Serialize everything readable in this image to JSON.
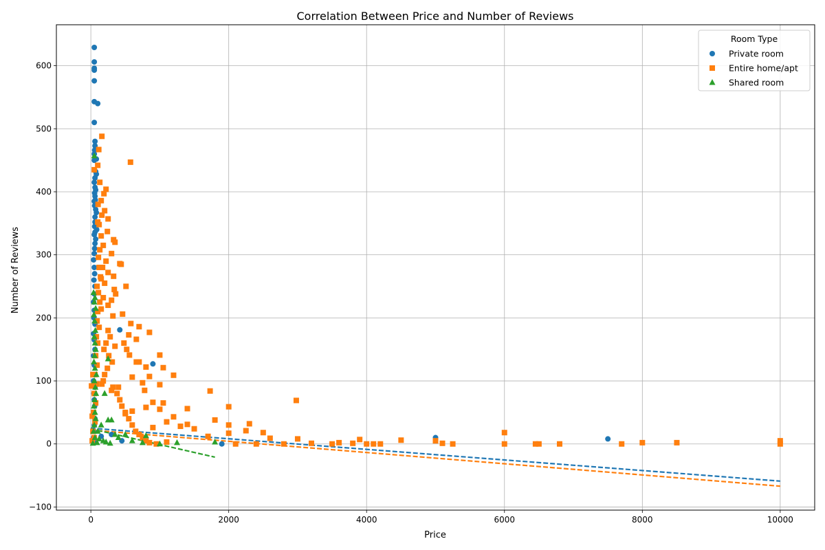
{
  "chart_data": {
    "type": "scatter",
    "title": "Correlation Between Price and Number of Reviews",
    "xlabel": "Price",
    "ylabel": "Number of Reviews",
    "xlim": [
      -500,
      10500
    ],
    "ylim": [
      -105,
      665
    ],
    "xticks": [
      0,
      2000,
      4000,
      6000,
      8000,
      10000
    ],
    "yticks": [
      -100,
      0,
      100,
      200,
      300,
      400,
      500,
      600
    ],
    "grid": true,
    "legend": {
      "title": "Room Type",
      "placement": "top-right"
    },
    "series": [
      {
        "name": "Private room",
        "color": "#1f77b4",
        "marker": "circle",
        "points": [
          [
            50,
            629
          ],
          [
            50,
            606
          ],
          [
            50,
            596
          ],
          [
            50,
            593
          ],
          [
            50,
            576
          ],
          [
            50,
            543
          ],
          [
            100,
            540
          ],
          [
            50,
            510
          ],
          [
            60,
            480
          ],
          [
            60,
            473
          ],
          [
            55,
            466
          ],
          [
            50,
            460
          ],
          [
            80,
            452
          ],
          [
            50,
            450
          ],
          [
            70,
            432
          ],
          [
            80,
            428
          ],
          [
            60,
            422
          ],
          [
            50,
            415
          ],
          [
            60,
            407
          ],
          [
            70,
            403
          ],
          [
            55,
            398
          ],
          [
            60,
            393
          ],
          [
            65,
            387
          ],
          [
            50,
            385
          ],
          [
            55,
            378
          ],
          [
            70,
            372
          ],
          [
            80,
            367
          ],
          [
            60,
            360
          ],
          [
            60,
            352
          ],
          [
            55,
            345
          ],
          [
            85,
            340
          ],
          [
            60,
            336
          ],
          [
            50,
            332
          ],
          [
            70,
            325
          ],
          [
            60,
            318
          ],
          [
            55,
            310
          ],
          [
            50,
            302
          ],
          [
            40,
            292
          ],
          [
            50,
            280
          ],
          [
            55,
            270
          ],
          [
            45,
            260
          ],
          [
            60,
            250
          ],
          [
            50,
            238
          ],
          [
            40,
            225
          ],
          [
            50,
            212
          ],
          [
            45,
            200
          ],
          [
            60,
            190
          ],
          [
            40,
            175
          ],
          [
            50,
            165
          ],
          [
            60,
            150
          ],
          [
            40,
            140
          ],
          [
            50,
            125
          ],
          [
            55,
            110
          ],
          [
            40,
            100
          ],
          [
            60,
            90
          ],
          [
            45,
            80
          ],
          [
            50,
            70
          ],
          [
            55,
            60
          ],
          [
            40,
            50
          ],
          [
            60,
            40
          ],
          [
            50,
            30
          ],
          [
            45,
            20
          ],
          [
            40,
            10
          ],
          [
            55,
            5
          ],
          [
            420,
            181
          ],
          [
            900,
            127
          ],
          [
            1900,
            0
          ],
          [
            5000,
            10
          ],
          [
            7500,
            8
          ],
          [
            300,
            15
          ],
          [
            450,
            5
          ],
          [
            150,
            12
          ]
        ],
        "trend": {
          "x": [
            0,
            10000
          ],
          "y": [
            25,
            -59
          ]
        }
      },
      {
        "name": "Entire home/apt",
        "color": "#ff7f0e",
        "marker": "square",
        "points": [
          [
            160,
            488
          ],
          [
            575,
            447
          ],
          [
            115,
            467
          ],
          [
            100,
            442
          ],
          [
            50,
            435
          ],
          [
            130,
            415
          ],
          [
            220,
            404
          ],
          [
            190,
            397
          ],
          [
            150,
            386
          ],
          [
            105,
            380
          ],
          [
            200,
            370
          ],
          [
            160,
            363
          ],
          [
            250,
            357
          ],
          [
            100,
            352
          ],
          [
            120,
            348
          ],
          [
            240,
            337
          ],
          [
            150,
            330
          ],
          [
            350,
            320
          ],
          [
            330,
            324
          ],
          [
            180,
            315
          ],
          [
            130,
            308
          ],
          [
            300,
            302
          ],
          [
            110,
            296
          ],
          [
            220,
            290
          ],
          [
            420,
            286
          ],
          [
            440,
            285
          ],
          [
            170,
            280
          ],
          [
            250,
            272
          ],
          [
            330,
            266
          ],
          [
            150,
            262
          ],
          [
            200,
            255
          ],
          [
            510,
            250
          ],
          [
            340,
            245
          ],
          [
            360,
            238
          ],
          [
            180,
            232
          ],
          [
            300,
            228
          ],
          [
            250,
            220
          ],
          [
            150,
            214
          ],
          [
            460,
            206
          ],
          [
            320,
            203
          ],
          [
            580,
            191
          ],
          [
            700,
            186
          ],
          [
            850,
            177
          ],
          [
            550,
            173
          ],
          [
            660,
            166
          ],
          [
            480,
            160
          ],
          [
            350,
            155
          ],
          [
            520,
            150
          ],
          [
            560,
            141
          ],
          [
            1000,
            141
          ],
          [
            700,
            130
          ],
          [
            660,
            130
          ],
          [
            1050,
            121
          ],
          [
            800,
            122
          ],
          [
            1200,
            109
          ],
          [
            600,
            106
          ],
          [
            850,
            107
          ],
          [
            1000,
            94
          ],
          [
            750,
            97
          ],
          [
            400,
            90
          ],
          [
            300,
            85
          ],
          [
            780,
            85
          ],
          [
            1730,
            84
          ],
          [
            2980,
            69
          ],
          [
            1050,
            65
          ],
          [
            900,
            66
          ],
          [
            2000,
            59
          ],
          [
            1400,
            56
          ],
          [
            1000,
            55
          ],
          [
            800,
            58
          ],
          [
            600,
            52
          ],
          [
            500,
            48
          ],
          [
            1200,
            43
          ],
          [
            1800,
            38
          ],
          [
            1100,
            35
          ],
          [
            2300,
            32
          ],
          [
            1400,
            31
          ],
          [
            2000,
            30
          ],
          [
            1300,
            28
          ],
          [
            900,
            26
          ],
          [
            1500,
            24
          ],
          [
            2250,
            21
          ],
          [
            2500,
            18
          ],
          [
            6000,
            18
          ],
          [
            2000,
            17
          ],
          [
            1700,
            12
          ],
          [
            2600,
            9
          ],
          [
            3000,
            8
          ],
          [
            3900,
            7
          ],
          [
            4500,
            6
          ],
          [
            5000,
            5
          ],
          [
            10000,
            5
          ],
          [
            8500,
            2
          ],
          [
            8000,
            2
          ],
          [
            3200,
            1
          ],
          [
            3600,
            2
          ],
          [
            3800,
            1
          ],
          [
            4000,
            0
          ],
          [
            4200,
            0
          ],
          [
            5100,
            1
          ],
          [
            5250,
            0
          ],
          [
            6000,
            0
          ],
          [
            6450,
            0
          ],
          [
            6500,
            0
          ],
          [
            6800,
            0
          ],
          [
            7700,
            0
          ],
          [
            10000,
            0
          ],
          [
            2100,
            0
          ],
          [
            2400,
            0
          ],
          [
            2800,
            0
          ],
          [
            3500,
            0
          ],
          [
            4100,
            0
          ],
          [
            250,
            180
          ],
          [
            280,
            170
          ],
          [
            220,
            160
          ],
          [
            190,
            150
          ],
          [
            260,
            140
          ],
          [
            310,
            130
          ],
          [
            240,
            120
          ],
          [
            200,
            110
          ],
          [
            180,
            100
          ],
          [
            160,
            95
          ],
          [
            320,
            90
          ],
          [
            380,
            80
          ],
          [
            420,
            70
          ],
          [
            450,
            60
          ],
          [
            500,
            50
          ],
          [
            550,
            40
          ],
          [
            600,
            30
          ],
          [
            650,
            20
          ],
          [
            700,
            15
          ],
          [
            750,
            10
          ],
          [
            800,
            5
          ],
          [
            850,
            2
          ],
          [
            950,
            0
          ],
          [
            1100,
            3
          ],
          [
            120,
            280
          ],
          [
            140,
            265
          ],
          [
            90,
            250
          ],
          [
            110,
            240
          ],
          [
            130,
            225
          ],
          [
            100,
            210
          ],
          [
            90,
            195
          ],
          [
            120,
            185
          ],
          [
            80,
            170
          ],
          [
            100,
            160
          ],
          [
            70,
            140
          ],
          [
            90,
            125
          ],
          [
            60,
            110
          ],
          [
            80,
            95
          ],
          [
            50,
            80
          ],
          [
            70,
            65
          ],
          [
            40,
            50
          ],
          [
            60,
            35
          ],
          [
            30,
            20
          ],
          [
            50,
            10
          ],
          [
            20,
            5
          ],
          [
            10,
            92
          ],
          [
            30,
            110
          ],
          [
            20,
            44
          ]
        ],
        "trend": {
          "x": [
            0,
            10000
          ],
          "y": [
            22,
            -67
          ]
        }
      },
      {
        "name": "Shared room",
        "color": "#2ca02c",
        "marker": "triangle",
        "points": [
          [
            50,
            457
          ],
          [
            40,
            240
          ],
          [
            60,
            232
          ],
          [
            50,
            225
          ],
          [
            70,
            215
          ],
          [
            45,
            205
          ],
          [
            55,
            195
          ],
          [
            65,
            180
          ],
          [
            50,
            170
          ],
          [
            60,
            160
          ],
          [
            70,
            150
          ],
          [
            55,
            140
          ],
          [
            45,
            130
          ],
          [
            60,
            120
          ],
          [
            80,
            110
          ],
          [
            50,
            100
          ],
          [
            65,
            90
          ],
          [
            75,
            80
          ],
          [
            55,
            70
          ],
          [
            45,
            60
          ],
          [
            60,
            50
          ],
          [
            70,
            40
          ],
          [
            50,
            30
          ],
          [
            40,
            20
          ],
          [
            60,
            10
          ],
          [
            250,
            135
          ],
          [
            200,
            80
          ],
          [
            300,
            38
          ],
          [
            250,
            38
          ],
          [
            150,
            30
          ],
          [
            100,
            20
          ],
          [
            350,
            15
          ],
          [
            500,
            15
          ],
          [
            800,
            13
          ],
          [
            400,
            10
          ],
          [
            600,
            5
          ],
          [
            750,
            2
          ],
          [
            1000,
            0
          ],
          [
            1250,
            2
          ],
          [
            1800,
            3
          ],
          [
            120,
            8
          ],
          [
            180,
            5
          ],
          [
            220,
            3
          ],
          [
            280,
            1
          ],
          [
            90,
            2
          ],
          [
            30,
            1
          ]
        ],
        "trend": {
          "x": [
            0,
            1800
          ],
          "y": [
            24,
            -21
          ]
        }
      }
    ]
  }
}
